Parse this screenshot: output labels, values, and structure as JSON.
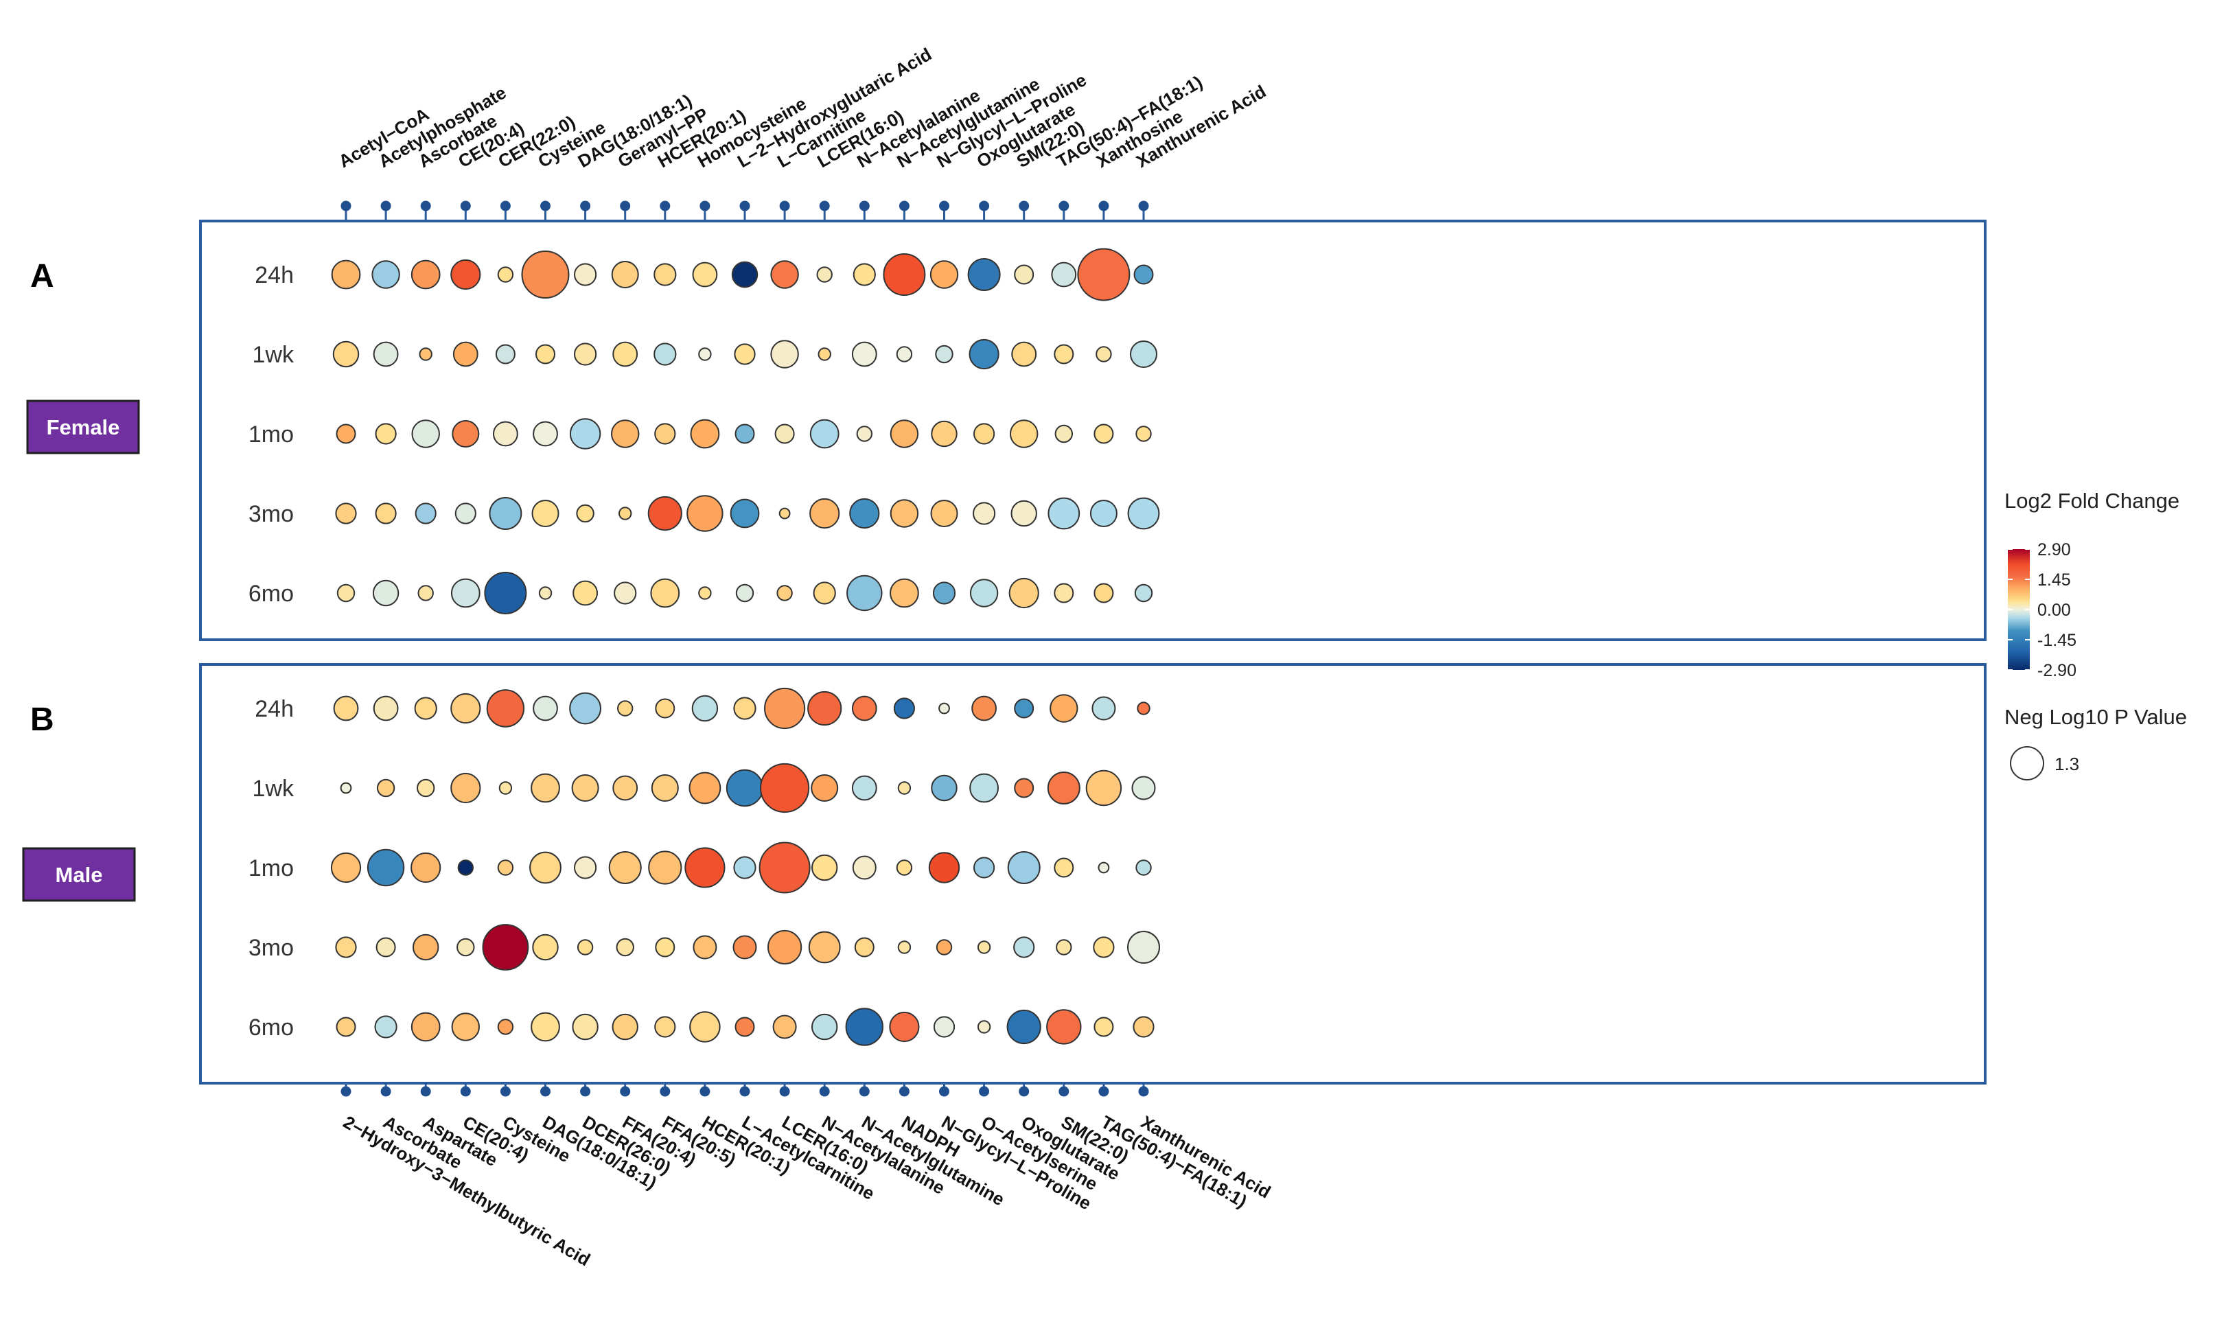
{
  "chart_data": {
    "type": "bubble-heatmap",
    "legend": {
      "color_title": "Log2 Fold Change",
      "color_ticks": [
        "2.90",
        "1.45",
        "0.00",
        "-1.45",
        "-2.90"
      ],
      "color_range": [
        -2.9,
        2.9
      ],
      "size_title": "Neg Log10 P Value",
      "size_value": "1.3",
      "placement": "right"
    },
    "panels": [
      {
        "panel_label": "A",
        "group": "Female",
        "timepoints": [
          "24h",
          "1wk",
          "1mo",
          "3mo",
          "6mo"
        ],
        "metabolites": [
          "Acetyl−CoA",
          "Acetylphosphate",
          "Ascorbate",
          "CE(20:4)",
          "CER(22:0)",
          "Cysteine",
          "DAG(18:0/18:1)",
          "Geranyl−PP",
          "HCER(20:1)",
          "Homocysteine",
          "L−2−Hydroxyglutaric Acid",
          "L−Carnitine",
          "LCER(16:0)",
          "N−Acetylalanine",
          "N−Acetylglutamine",
          "N−Glycyl−L−Proline",
          "Oxoglutarate",
          "SM(22:0)",
          "TAG(50:4)−FA(18:1)",
          "Xanthosine",
          "Xanthurenic Acid"
        ],
        "label_position": "top",
        "log2fc": [
          [
            0.9,
            -0.5,
            1.2,
            2.0,
            0.4,
            1.3,
            0.1,
            0.6,
            0.5,
            0.4,
            -2.8,
            1.5,
            0.2,
            0.4,
            2.1,
            1.0,
            -1.6,
            0.2,
            -0.2,
            1.6,
            -0.9
          ],
          [
            0.5,
            -0.1,
            0.8,
            1.0,
            -0.2,
            0.4,
            0.3,
            0.4,
            -0.3,
            0.0,
            0.4,
            0.1,
            0.5,
            0.0,
            0.0,
            -0.2,
            -1.3,
            0.5,
            0.4,
            0.3,
            -0.3
          ],
          [
            1.0,
            0.4,
            -0.1,
            1.4,
            0.1,
            0.0,
            -0.4,
            0.9,
            0.6,
            1.0,
            -0.7,
            0.2,
            -0.4,
            0.1,
            0.9,
            0.6,
            0.5,
            0.5,
            0.2,
            0.4,
            0.4
          ],
          [
            0.6,
            0.5,
            -0.5,
            -0.1,
            -0.6,
            0.4,
            0.4,
            0.5,
            2.0,
            1.1,
            -1.0,
            0.5,
            0.9,
            -1.1,
            0.8,
            0.7,
            0.1,
            0.1,
            -0.4,
            -0.4,
            -0.4
          ],
          [
            0.3,
            -0.1,
            0.3,
            -0.2,
            -2.1,
            0.2,
            0.4,
            0.1,
            0.5,
            0.4,
            -0.1,
            0.6,
            0.5,
            -0.6,
            0.8,
            -0.8,
            -0.3,
            0.6,
            0.3,
            0.5,
            -0.3
          ]
        ],
        "neglog10p": [
          [
            1.2,
            1.1,
            1.2,
            1.3,
            0.2,
            4.0,
            0.6,
            1.0,
            0.6,
            0.8,
            0.9,
            1.1,
            0.2,
            0.6,
            3.0,
            1.1,
            1.6,
            0.4,
            0.8,
            5.0,
            0.4
          ],
          [
            0.9,
            0.8,
            0.1,
            0.8,
            0.4,
            0.4,
            0.6,
            0.8,
            0.6,
            0.1,
            0.5,
            1.1,
            0.1,
            0.8,
            0.2,
            0.3,
            1.3,
            0.8,
            0.4,
            0.2,
            1.0
          ],
          [
            0.4,
            0.5,
            1.1,
            1.0,
            0.8,
            0.8,
            1.4,
            1.1,
            0.5,
            1.2,
            0.4,
            0.4,
            1.2,
            0.2,
            1.1,
            0.9,
            0.5,
            1.1,
            0.3,
            0.4,
            0.2
          ],
          [
            0.5,
            0.5,
            0.5,
            0.5,
            1.6,
            1.0,
            0.3,
            0.1,
            1.8,
            2.1,
            1.2,
            0.05,
            1.3,
            1.3,
            1.1,
            1.0,
            0.6,
            0.9,
            1.5,
            1.0,
            1.5
          ],
          [
            0.3,
            0.9,
            0.2,
            1.2,
            3.0,
            0.1,
            0.8,
            0.6,
            1.2,
            0.1,
            0.3,
            0.2,
            0.6,
            2.0,
            1.2,
            0.6,
            1.1,
            1.3,
            0.4,
            0.4,
            0.3
          ]
        ]
      },
      {
        "panel_label": "B",
        "group": "Male",
        "timepoints": [
          "24h",
          "1wk",
          "1mo",
          "3mo",
          "6mo"
        ],
        "metabolites": [
          "2−Hydroxy−3−Methylbutyric Acid",
          "Ascorbate",
          "Aspartate",
          "CE(20:4)",
          "Cysteine",
          "DAG(18:0/18:1)",
          "DCER(26:0)",
          "FFA(20:4)",
          "FFA(20:5)",
          "HCER(20:1)",
          "L−Acetylcarnitine",
          "LCER(16:0)",
          "N−Acetylalanine",
          "N−Acetylglutamine",
          "NADPH",
          "N−Glycyl−L−Proline",
          "O−Acetylserine",
          "Oxoglutarate",
          "SM(22:0)",
          "TAG(50:4)−FA(18:1)",
          "Xanthurenic Acid"
        ],
        "label_position": "bottom",
        "log2fc": [
          [
            0.5,
            0.2,
            0.5,
            0.6,
            1.7,
            -0.1,
            -0.5,
            0.5,
            0.5,
            -0.3,
            0.5,
            1.2,
            1.7,
            1.5,
            -1.8,
            0.0,
            1.3,
            -1.0,
            1.0,
            -0.3,
            1.5
          ],
          [
            0.0,
            0.6,
            0.3,
            0.8,
            0.3,
            0.6,
            0.6,
            0.6,
            0.6,
            1.0,
            -1.4,
            2.0,
            1.1,
            -0.3,
            0.3,
            -0.7,
            -0.3,
            1.4,
            1.5,
            0.7,
            -0.1
          ],
          [
            0.8,
            -1.3,
            0.9,
            -2.9,
            0.6,
            0.5,
            0.1,
            0.7,
            0.8,
            2.1,
            -0.4,
            1.9,
            0.4,
            0.1,
            0.4,
            2.2,
            -0.5,
            -0.5,
            0.4,
            0.0,
            -0.3
          ],
          [
            0.5,
            0.2,
            0.9,
            0.2,
            2.9,
            0.4,
            0.4,
            0.3,
            0.4,
            0.8,
            1.3,
            1.1,
            0.8,
            0.5,
            0.3,
            1.0,
            0.3,
            -0.3,
            0.3,
            0.4,
            -0.05
          ],
          [
            0.6,
            -0.3,
            0.9,
            0.8,
            1.1,
            0.4,
            0.3,
            0.6,
            0.5,
            0.5,
            1.4,
            0.8,
            -0.3,
            -1.9,
            1.6,
            -0.05,
            0.1,
            -1.7,
            1.6,
            0.4,
            0.6
          ]
        ],
        "neglog10p": [
          [
            0.8,
            0.8,
            0.6,
            1.3,
            2.3,
            0.8,
            1.5,
            0.2,
            0.4,
            0.9,
            0.6,
            2.8,
            1.8,
            0.8,
            0.5,
            0.05,
            0.8,
            0.4,
            1.1,
            0.7,
            0.1
          ],
          [
            0.05,
            0.3,
            0.3,
            1.3,
            0.1,
            1.2,
            1.0,
            0.8,
            1.0,
            1.5,
            2.2,
            4.3,
            1.0,
            0.8,
            0.1,
            0.9,
            1.2,
            0.4,
            1.6,
            2.0,
            0.7
          ],
          [
            1.3,
            2.2,
            1.3,
            0.2,
            0.2,
            1.5,
            0.6,
            1.6,
            1.7,
            2.7,
            0.6,
            4.7,
            0.9,
            0.7,
            0.2,
            1.4,
            0.5,
            1.6,
            0.4,
            0.05,
            0.2
          ],
          [
            0.5,
            0.4,
            0.9,
            0.3,
            3.7,
            0.9,
            0.2,
            0.3,
            0.4,
            0.7,
            0.7,
            1.8,
            1.5,
            0.4,
            0.1,
            0.2,
            0.1,
            0.5,
            0.2,
            0.5,
            1.6
          ],
          [
            0.4,
            0.6,
            1.2,
            1.1,
            0.2,
            1.2,
            0.9,
            0.9,
            0.5,
            1.4,
            0.4,
            0.7,
            0.9,
            2.3,
            1.3,
            0.5,
            0.1,
            1.8,
            1.9,
            0.4,
            0.5
          ]
        ]
      }
    ]
  }
}
